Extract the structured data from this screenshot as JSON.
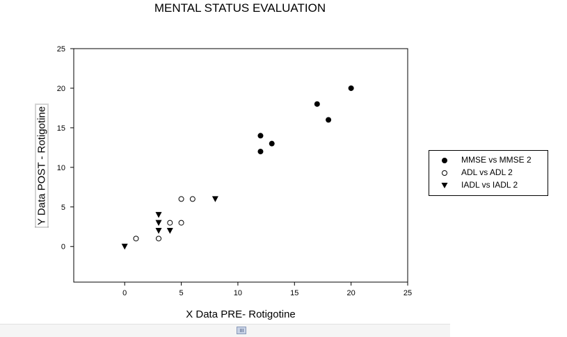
{
  "chart_data": {
    "type": "scatter",
    "title": "MENTAL STATUS EVALUATION",
    "xlabel": "X Data PRE- Rotigotine",
    "ylabel": "Y Data POST - Rotigotine",
    "xlim": [
      -4.5,
      25
    ],
    "ylim": [
      -4.5,
      25
    ],
    "xticks": [
      0,
      5,
      10,
      15,
      20,
      25
    ],
    "yticks": [
      0,
      5,
      10,
      15,
      20,
      25
    ],
    "grid": false,
    "legend_position": "right",
    "series": [
      {
        "name": "MMSE vs MMSE 2",
        "marker": "filled-circle",
        "points": [
          [
            12,
            12
          ],
          [
            12,
            14
          ],
          [
            13,
            13
          ],
          [
            17,
            18
          ],
          [
            18,
            16
          ],
          [
            20,
            20
          ]
        ]
      },
      {
        "name": "ADL vs ADL 2",
        "marker": "open-circle",
        "points": [
          [
            1,
            1
          ],
          [
            3,
            1
          ],
          [
            4,
            3
          ],
          [
            5,
            3
          ],
          [
            5,
            6
          ],
          [
            6,
            6
          ]
        ]
      },
      {
        "name": "IADL vs IADL 2",
        "marker": "filled-triangle-down",
        "points": [
          [
            0,
            0
          ],
          [
            3,
            2
          ],
          [
            3,
            3
          ],
          [
            3,
            4
          ],
          [
            4,
            2
          ],
          [
            8,
            6
          ]
        ]
      }
    ]
  }
}
